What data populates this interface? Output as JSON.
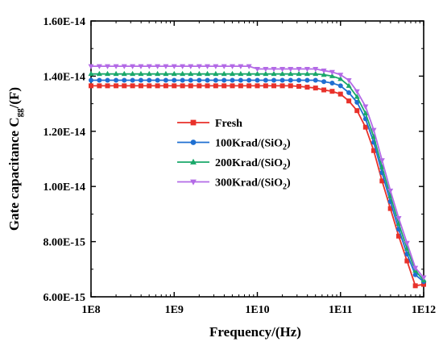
{
  "chart_data": {
    "type": "line",
    "title": "",
    "xlabel": "Frequency/(Hz)",
    "ylabel": {
      "prefix": "Gate capacitance C",
      "subscript": "gg",
      "suffix": "/(F)"
    },
    "x_scale": "log",
    "xlim": [
      100000000.0,
      1000000000000.0
    ],
    "ylim": [
      6e-15,
      1.6e-14
    ],
    "x_ticks": [
      100000000.0,
      1000000000.0,
      10000000000.0,
      100000000000.0,
      1000000000000.0
    ],
    "x_tick_labels": [
      "1E8",
      "1E9",
      "1E10",
      "1E11",
      "1E12"
    ],
    "y_ticks": [
      6e-15,
      8e-15,
      1e-14,
      1.2e-14,
      1.4e-14,
      1.6e-14
    ],
    "y_tick_labels": [
      "6.00E-15",
      "8.00E-15",
      "1.00E-14",
      "1.20E-14",
      "1.40E-14",
      "1.60E-14"
    ],
    "grid": false,
    "legend_placement": "center",
    "x": [
      100000000.0,
      126000000.0,
      158000000.0,
      200000000.0,
      251000000.0,
      316000000.0,
      398000000.0,
      501000000.0,
      631000000.0,
      794000000.0,
      1000000000.0,
      1260000000.0,
      1580000000.0,
      2000000000.0,
      2510000000.0,
      3160000000.0,
      3980000000.0,
      5010000000.0,
      6310000000.0,
      7940000000.0,
      10000000000.0,
      12600000000.0,
      15800000000.0,
      20000000000.0,
      25100000000.0,
      31600000000.0,
      39800000000.0,
      50100000000.0,
      63100000000.0,
      79400000000.0,
      100000000000.0,
      126000000000.0,
      158000000000.0,
      200000000000.0,
      251000000000.0,
      316000000000.0,
      398000000000.0,
      501000000000.0,
      631000000000.0,
      794000000000.0,
      1000000000000.0
    ],
    "series": [
      {
        "name": "Fresh",
        "color": "#e8312a",
        "marker": "square",
        "values": [
          1.365e-14,
          1.365e-14,
          1.365e-14,
          1.365e-14,
          1.365e-14,
          1.365e-14,
          1.365e-14,
          1.365e-14,
          1.365e-14,
          1.365e-14,
          1.365e-14,
          1.365e-14,
          1.365e-14,
          1.365e-14,
          1.365e-14,
          1.365e-14,
          1.365e-14,
          1.365e-14,
          1.365e-14,
          1.365e-14,
          1.365e-14,
          1.365e-14,
          1.365e-14,
          1.365e-14,
          1.365e-14,
          1.363e-14,
          1.36e-14,
          1.357e-14,
          1.35e-14,
          1.345e-14,
          1.335e-14,
          1.31e-14,
          1.275e-14,
          1.215e-14,
          1.13e-14,
          1.02e-14,
          9.2e-15,
          8.2e-15,
          7.3e-15,
          6.4e-15,
          6.45e-15
        ]
      },
      {
        "name": "100Krad/(SiO",
        "name_sub": "2",
        "name_suffix": ")",
        "color": "#1f6fd1",
        "marker": "circle",
        "values": [
          1.385e-14,
          1.385e-14,
          1.385e-14,
          1.385e-14,
          1.385e-14,
          1.385e-14,
          1.385e-14,
          1.385e-14,
          1.385e-14,
          1.385e-14,
          1.385e-14,
          1.385e-14,
          1.385e-14,
          1.385e-14,
          1.385e-14,
          1.385e-14,
          1.385e-14,
          1.385e-14,
          1.385e-14,
          1.385e-14,
          1.385e-14,
          1.385e-14,
          1.385e-14,
          1.385e-14,
          1.385e-14,
          1.385e-14,
          1.385e-14,
          1.385e-14,
          1.38e-14,
          1.375e-14,
          1.365e-14,
          1.34e-14,
          1.305e-14,
          1.245e-14,
          1.16e-14,
          1.05e-14,
          9.45e-15,
          8.45e-15,
          7.55e-15,
          6.8e-15,
          6.55e-15
        ]
      },
      {
        "name": "200Krad/(SiO",
        "name_sub": "2",
        "name_suffix": ")",
        "color": "#1aa86a",
        "marker": "triangle",
        "values": [
          1.408e-14,
          1.408e-14,
          1.408e-14,
          1.408e-14,
          1.408e-14,
          1.408e-14,
          1.408e-14,
          1.408e-14,
          1.408e-14,
          1.408e-14,
          1.408e-14,
          1.408e-14,
          1.408e-14,
          1.408e-14,
          1.408e-14,
          1.408e-14,
          1.408e-14,
          1.408e-14,
          1.408e-14,
          1.408e-14,
          1.408e-14,
          1.408e-14,
          1.408e-14,
          1.408e-14,
          1.408e-14,
          1.408e-14,
          1.408e-14,
          1.408e-14,
          1.405e-14,
          1.4e-14,
          1.39e-14,
          1.365e-14,
          1.325e-14,
          1.265e-14,
          1.18e-14,
          1.07e-14,
          9.65e-15,
          8.65e-15,
          7.75e-15,
          6.95e-15,
          6.6e-15
        ]
      },
      {
        "name": "300Krad/(SiO",
        "name_sub": "2",
        "name_suffix": ")",
        "color": "#b36ae6",
        "marker": "triangle-down",
        "values": [
          1.436e-14,
          1.436e-14,
          1.436e-14,
          1.436e-14,
          1.436e-14,
          1.436e-14,
          1.436e-14,
          1.436e-14,
          1.436e-14,
          1.436e-14,
          1.436e-14,
          1.436e-14,
          1.436e-14,
          1.436e-14,
          1.436e-14,
          1.436e-14,
          1.436e-14,
          1.436e-14,
          1.436e-14,
          1.436e-14,
          1.426e-14,
          1.426e-14,
          1.426e-14,
          1.426e-14,
          1.426e-14,
          1.426e-14,
          1.426e-14,
          1.426e-14,
          1.42e-14,
          1.415e-14,
          1.405e-14,
          1.385e-14,
          1.345e-14,
          1.29e-14,
          1.205e-14,
          1.095e-14,
          9.85e-15,
          8.85e-15,
          7.95e-15,
          7.05e-15,
          6.7e-15
        ]
      }
    ]
  }
}
